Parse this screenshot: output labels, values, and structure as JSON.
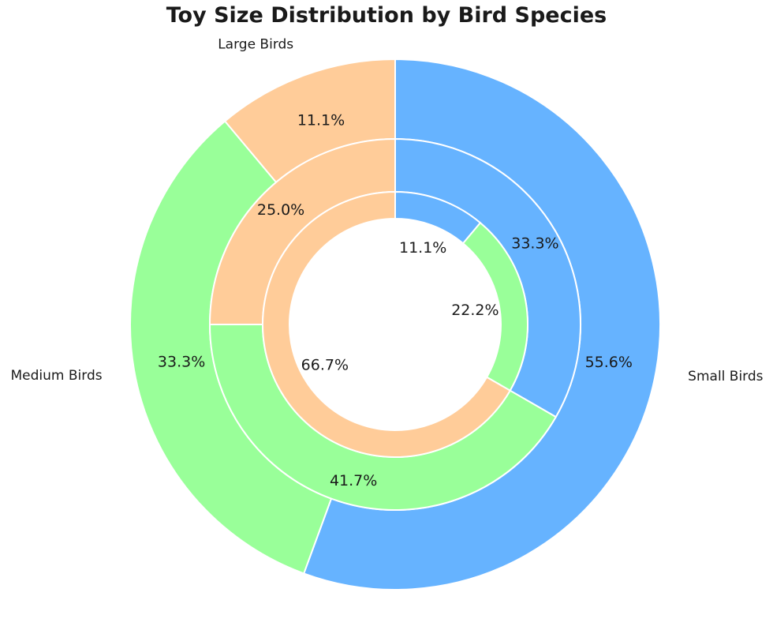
{
  "chart_data": {
    "type": "pie",
    "subtype": "nested-donut",
    "title": "Toy Size Distribution by Bird Species",
    "rings": [
      {
        "ring": "outer",
        "categories": [
          "Small Birds",
          "Medium Birds",
          "Large Birds"
        ],
        "values": [
          55.6,
          33.3,
          11.1
        ],
        "labels": [
          "55.6%",
          "33.3%",
          "11.1%"
        ],
        "colors": [
          "#66b3ff",
          "#99ff99",
          "#ffcc99"
        ]
      },
      {
        "ring": "middle",
        "values": [
          33.3,
          41.7,
          25.0
        ],
        "labels": [
          "33.3%",
          "41.7%",
          "25.0%"
        ],
        "colors": [
          "#66b3ff",
          "#99ff99",
          "#ffcc99"
        ]
      },
      {
        "ring": "inner",
        "values": [
          11.1,
          22.2,
          66.7
        ],
        "labels": [
          "11.1%",
          "22.2%",
          "66.7%"
        ],
        "colors": [
          "#66b3ff",
          "#99ff99",
          "#ffcc99"
        ]
      }
    ],
    "start_angle_deg": 90,
    "direction": "clockwise",
    "legend": "none"
  }
}
